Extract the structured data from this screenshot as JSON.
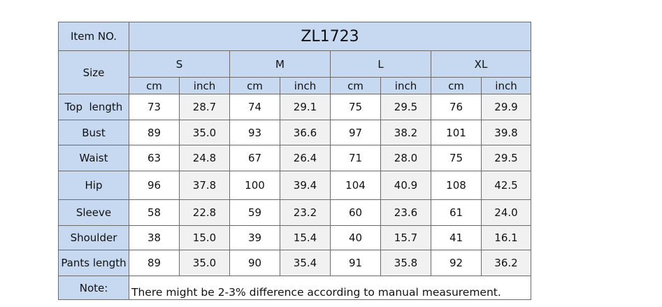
{
  "header": {
    "item_label": "Item NO.",
    "item_value": "ZL1723"
  },
  "size_label": "Size",
  "sizes": [
    "S",
    "M",
    "L",
    "XL"
  ],
  "units": [
    "cm",
    "inch",
    "cm",
    "inch",
    "cm",
    "inch",
    "cm",
    "inch"
  ],
  "rows": [
    {
      "label": "Top  length",
      "values": [
        "73",
        "28.7",
        "74",
        "29.1",
        "75",
        "29.5",
        "76",
        "29.9"
      ]
    },
    {
      "label": "Bust",
      "values": [
        "89",
        "35.0",
        "93",
        "36.6",
        "97",
        "38.2",
        "101",
        "39.8"
      ]
    },
    {
      "label": "Waist",
      "values": [
        "63",
        "24.8",
        "67",
        "26.4",
        "71",
        "28.0",
        "75",
        "29.5"
      ]
    },
    {
      "label": "Hip",
      "values": [
        "96",
        "37.8",
        "100",
        "39.4",
        "104",
        "40.9",
        "108",
        "42.5"
      ]
    },
    {
      "label": "Sleeve",
      "values": [
        "58",
        "22.8",
        "59",
        "23.2",
        "60",
        "23.6",
        "61",
        "24.0"
      ]
    },
    {
      "label": "Shoulder",
      "values": [
        "38",
        "15.0",
        "39",
        "15.4",
        "40",
        "15.7",
        "41",
        "16.1"
      ]
    },
    {
      "label": "Pants length",
      "values": [
        "89",
        "35.0",
        "90",
        "35.4",
        "91",
        "35.8",
        "92",
        "36.2"
      ]
    }
  ],
  "note": {
    "label": "Note:",
    "text": "There might be 2-3% difference according to manual measurement."
  }
}
